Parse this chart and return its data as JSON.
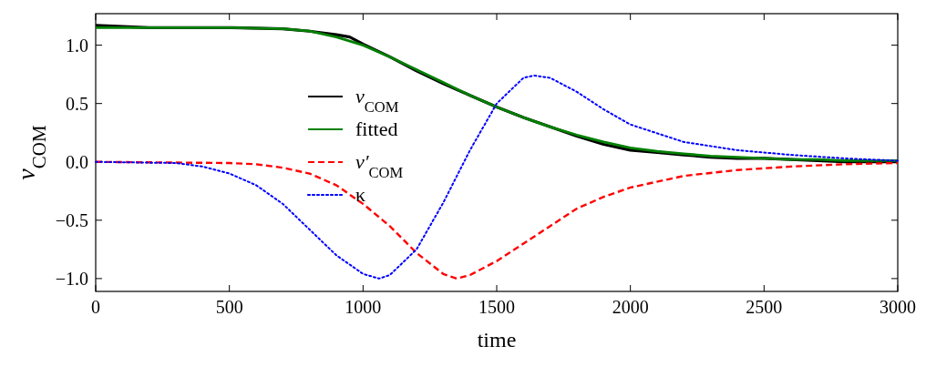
{
  "chart_data": {
    "type": "line",
    "xlabel": "time",
    "ylabel": "v$_{COM}$",
    "xlim": [
      0,
      3000
    ],
    "ylim": [
      -1.11,
      1.27
    ],
    "xticks": [
      0,
      500,
      1000,
      1500,
      2000,
      2500,
      3000
    ],
    "yticks": [
      {
        "value": -1,
        "label": "−1.0"
      },
      {
        "value": -0.5,
        "label": "−0.5"
      },
      {
        "value": 0,
        "label": "0.0"
      },
      {
        "value": 0.5,
        "label": "0.5"
      },
      {
        "value": 1,
        "label": "1.0"
      }
    ],
    "grid": false,
    "legend": "center",
    "line_style": "solid",
    "series": [
      {
        "name": "v$_{COM}$",
        "color": "#000000",
        "x": [
          0,
          200,
          500,
          700,
          800,
          900,
          950,
          1000,
          1100,
          1200,
          1300,
          1400,
          1500,
          1600,
          1700,
          1800,
          1900,
          2000,
          2100,
          2200,
          2300,
          2400,
          2500,
          2600,
          2700,
          2800,
          2900,
          3000
        ],
        "values": [
          1.17,
          1.15,
          1.15,
          1.14,
          1.12,
          1.09,
          1.07,
          1.01,
          0.9,
          0.78,
          0.67,
          0.57,
          0.47,
          0.38,
          0.3,
          0.22,
          0.15,
          0.1,
          0.08,
          0.06,
          0.04,
          0.03,
          0.03,
          0.02,
          0.01,
          0.0,
          0.0,
          0.0
        ]
      },
      {
        "name": "fitted",
        "color": "#008000",
        "x": [
          0,
          200,
          500,
          700,
          800,
          900,
          1000,
          1100,
          1200,
          1300,
          1400,
          1500,
          1600,
          1700,
          1800,
          1900,
          2000,
          2100,
          2200,
          2300,
          2400,
          2500,
          2600,
          2700,
          2800,
          2900,
          3000
        ],
        "values": [
          1.15,
          1.15,
          1.15,
          1.14,
          1.12,
          1.07,
          1.0,
          0.9,
          0.79,
          0.68,
          0.57,
          0.47,
          0.38,
          0.3,
          0.23,
          0.17,
          0.12,
          0.09,
          0.07,
          0.05,
          0.04,
          0.03,
          0.02,
          0.02,
          0.01,
          0.01,
          0.01
        ]
      },
      {
        "name": "v′$_{COM}$",
        "color": "#ff0000",
        "line_style": "dashed",
        "x": [
          0,
          500,
          600,
          700,
          800,
          900,
          1000,
          1100,
          1200,
          1300,
          1350,
          1400,
          1500,
          1600,
          1700,
          1800,
          1900,
          2000,
          2200,
          2400,
          2600,
          2800,
          3000
        ],
        "values": [
          0,
          -0.01,
          -0.02,
          -0.05,
          -0.1,
          -0.2,
          -0.36,
          -0.55,
          -0.78,
          -0.96,
          -1.0,
          -0.97,
          -0.85,
          -0.7,
          -0.55,
          -0.4,
          -0.3,
          -0.22,
          -0.12,
          -0.07,
          -0.04,
          -0.02,
          -0.01
        ]
      },
      {
        "name": "κ",
        "color": "#0000ff",
        "line_style": "dotted",
        "x": [
          0,
          300,
          400,
          500,
          600,
          700,
          800,
          900,
          1000,
          1060,
          1100,
          1200,
          1300,
          1400,
          1500,
          1600,
          1640,
          1700,
          1800,
          1900,
          2000,
          2200,
          2400,
          2600,
          2800,
          3000
        ],
        "values": [
          0,
          -0.01,
          -0.04,
          -0.1,
          -0.2,
          -0.36,
          -0.58,
          -0.8,
          -0.96,
          -1.0,
          -0.97,
          -0.75,
          -0.35,
          0.1,
          0.5,
          0.72,
          0.74,
          0.72,
          0.6,
          0.45,
          0.32,
          0.17,
          0.1,
          0.06,
          0.03,
          0.01
        ]
      }
    ]
  }
}
